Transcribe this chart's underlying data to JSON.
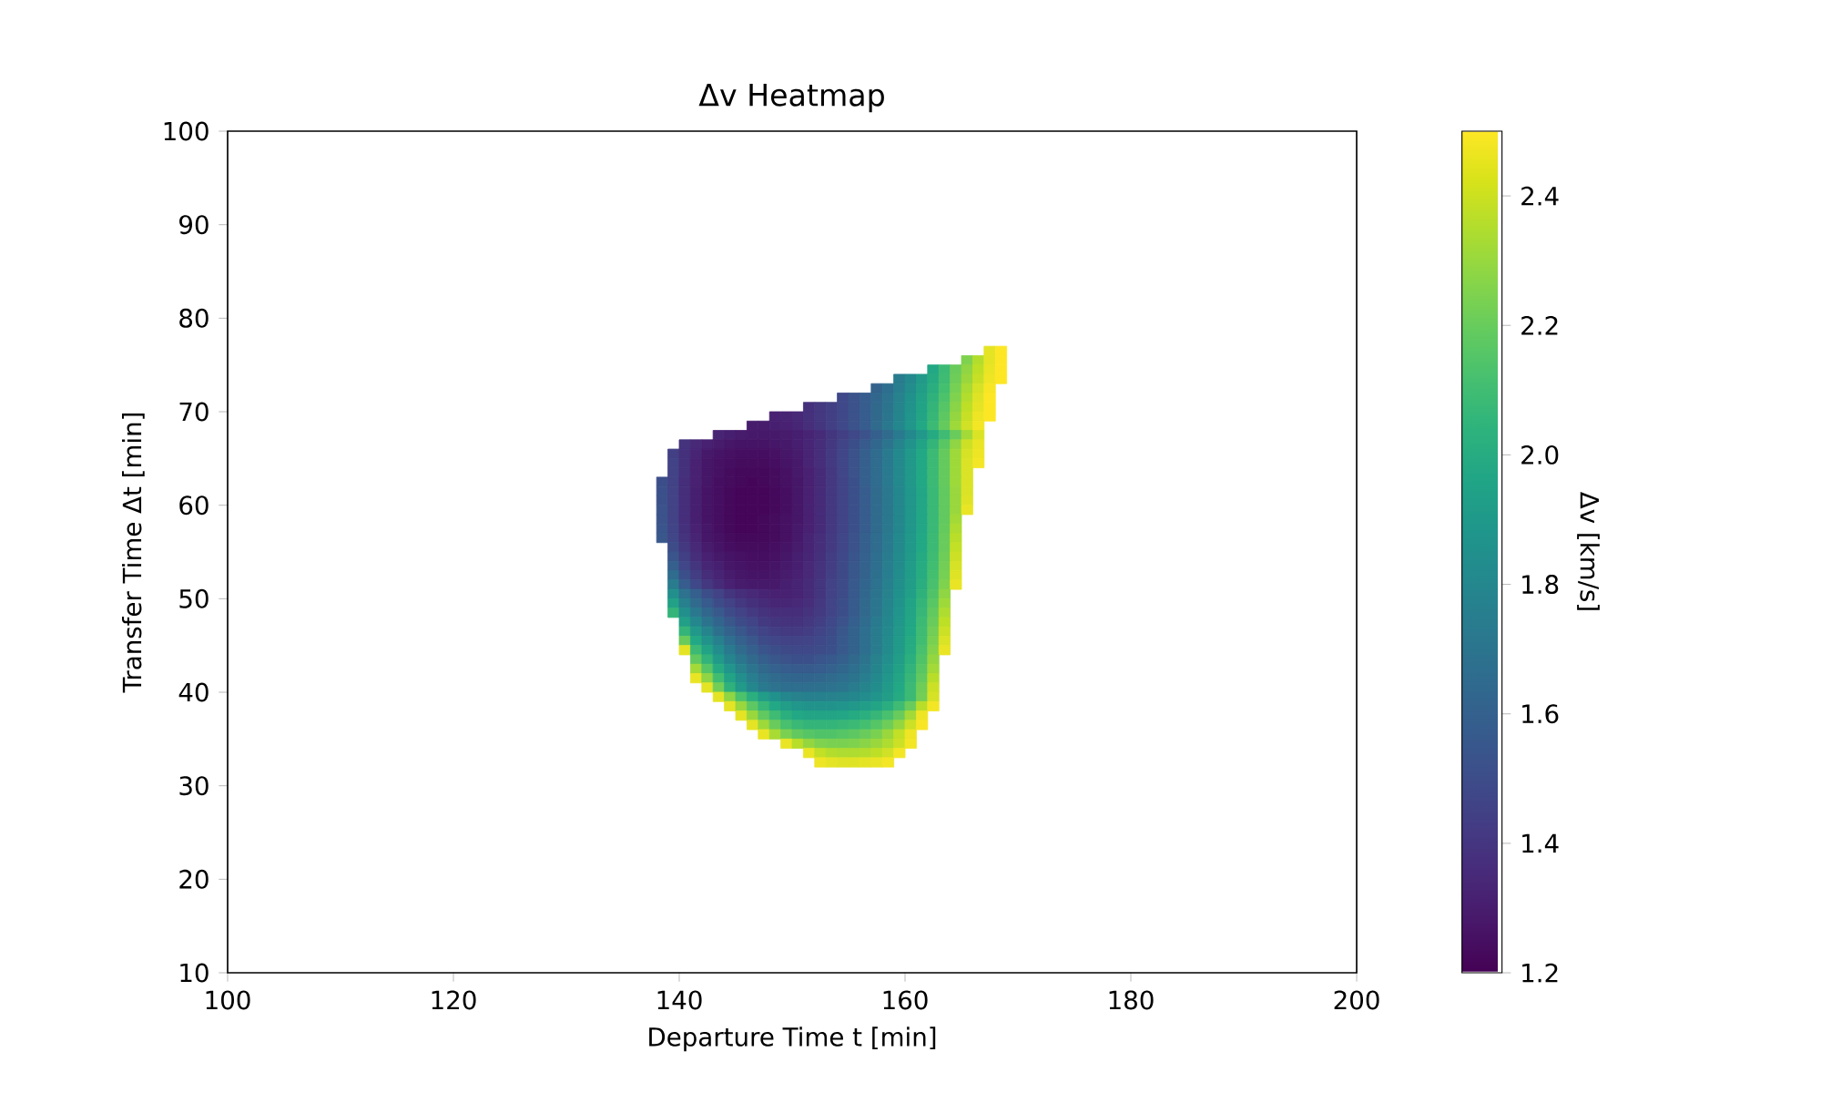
{
  "chart_data": {
    "type": "heatmap",
    "title": "Δv Heatmap",
    "xlabel": "Departure Time t [min]",
    "ylabel": "Transfer Time Δt [min]",
    "clabel": "Δv [km/s]",
    "xlim": [
      100,
      200
    ],
    "ylim": [
      10,
      100
    ],
    "xticks": [
      100,
      120,
      140,
      160,
      180,
      200
    ],
    "yticks": [
      10,
      20,
      30,
      40,
      50,
      60,
      70,
      80,
      90,
      100
    ],
    "clim": [
      1.2,
      2.5
    ],
    "cticks": [
      1.2,
      1.4,
      1.6,
      1.8,
      {
        "value": 2.0,
        "label": "2.0"
      },
      2.2,
      2.4
    ],
    "x": [
      138.5,
      139.5,
      140.5,
      141.5,
      142.5,
      143.5,
      144.5,
      145.5,
      146.5,
      147.5,
      148.5,
      149.5,
      150.5,
      151.5,
      152.5,
      153.5,
      154.5,
      155.5,
      156.5,
      157.5,
      158.5,
      159.5,
      160.5,
      161.5,
      162.5,
      163.5,
      164.5,
      165.5,
      166.5,
      167.5,
      168.5
    ],
    "y": [
      76.5,
      75.5,
      74.5,
      73.5,
      72.5,
      71.5,
      70.5,
      69.5,
      68.5,
      67.5,
      66.5,
      65.5,
      64.5,
      63.5,
      62.5,
      61.5,
      60.5,
      59.5,
      58.5,
      57.5,
      56.5,
      55.5,
      54.5,
      53.5,
      52.5,
      51.5,
      50.5,
      49.5,
      48.5,
      47.5,
      46.5,
      45.5,
      44.5,
      43.5,
      42.5,
      41.5,
      40.5,
      39.5,
      38.5,
      37.5,
      36.5,
      35.5,
      34.5,
      33.5,
      32.5
    ],
    "cells": [
      [
        null,
        null,
        null,
        null,
        null,
        null,
        null,
        null,
        null,
        null,
        null,
        null,
        null,
        null,
        null,
        null,
        null,
        null,
        null,
        null,
        null,
        null,
        null,
        null,
        null,
        null,
        null,
        null,
        null,
        2.45,
        2.5
      ],
      [
        null,
        null,
        null,
        null,
        null,
        null,
        null,
        null,
        null,
        null,
        null,
        null,
        null,
        null,
        null,
        null,
        null,
        null,
        null,
        null,
        null,
        null,
        null,
        null,
        null,
        null,
        null,
        2.25,
        2.35,
        2.45,
        2.5
      ],
      [
        null,
        null,
        null,
        null,
        null,
        null,
        null,
        null,
        null,
        null,
        null,
        null,
        null,
        null,
        null,
        null,
        null,
        null,
        null,
        null,
        null,
        null,
        null,
        null,
        1.98,
        2.08,
        2.2,
        2.28,
        2.37,
        2.46,
        2.5
      ],
      [
        null,
        null,
        null,
        null,
        null,
        null,
        null,
        null,
        null,
        null,
        null,
        null,
        null,
        null,
        null,
        null,
        null,
        null,
        null,
        null,
        null,
        1.74,
        1.81,
        1.9,
        1.99,
        2.09,
        2.21,
        2.3,
        2.39,
        2.47,
        2.5
      ],
      [
        null,
        null,
        null,
        null,
        null,
        null,
        null,
        null,
        null,
        null,
        null,
        null,
        null,
        null,
        null,
        null,
        null,
        null,
        null,
        1.61,
        1.67,
        1.75,
        1.83,
        1.92,
        2.01,
        2.11,
        2.23,
        2.33,
        2.42,
        2.49,
        null
      ],
      [
        null,
        null,
        null,
        null,
        null,
        null,
        null,
        null,
        null,
        null,
        null,
        null,
        null,
        null,
        null,
        null,
        1.48,
        1.53,
        1.58,
        1.63,
        1.69,
        1.77,
        1.85,
        1.94,
        2.03,
        2.13,
        2.25,
        2.35,
        2.44,
        2.5,
        null
      ],
      [
        null,
        null,
        null,
        null,
        null,
        null,
        null,
        null,
        null,
        null,
        null,
        null,
        null,
        1.38,
        1.41,
        1.44,
        1.48,
        1.53,
        1.58,
        1.64,
        1.7,
        1.78,
        1.86,
        1.95,
        2.05,
        2.15,
        2.27,
        2.37,
        2.45,
        2.5,
        null
      ],
      [
        null,
        null,
        null,
        null,
        null,
        null,
        null,
        null,
        null,
        null,
        1.32,
        1.33,
        1.35,
        1.38,
        1.41,
        1.44,
        1.48,
        1.53,
        1.58,
        1.64,
        1.71,
        1.79,
        1.87,
        1.96,
        2.06,
        2.17,
        2.29,
        2.39,
        2.47,
        2.5,
        null
      ],
      [
        null,
        null,
        null,
        null,
        null,
        null,
        null,
        null,
        1.3,
        1.3,
        1.31,
        1.32,
        1.34,
        1.37,
        1.4,
        1.44,
        1.48,
        1.53,
        1.58,
        1.65,
        1.72,
        1.8,
        1.88,
        1.98,
        2.08,
        2.19,
        2.31,
        2.41,
        2.48,
        null,
        null
      ],
      [
        null,
        null,
        null,
        null,
        null,
        1.33,
        1.31,
        1.3,
        1.29,
        1.29,
        1.29,
        1.3,
        1.31,
        1.33,
        1.36,
        1.4,
        1.44,
        1.48,
        1.53,
        1.59,
        1.65,
        1.73,
        1.81,
        1.89,
        1.99,
        2.09,
        2.2,
        2.32,
        2.43,
        null,
        null
      ],
      [
        null,
        null,
        1.39,
        1.35,
        1.32,
        1.3,
        1.28,
        1.27,
        1.27,
        1.27,
        1.28,
        1.29,
        1.31,
        1.34,
        1.37,
        1.41,
        1.46,
        1.51,
        1.57,
        1.63,
        1.7,
        1.78,
        1.86,
        1.95,
        2.05,
        2.16,
        2.28,
        2.4,
        2.46,
        null,
        null
      ],
      [
        null,
        1.44,
        1.38,
        1.33,
        1.29,
        1.27,
        1.26,
        1.25,
        1.25,
        1.25,
        1.26,
        1.28,
        1.3,
        1.33,
        1.37,
        1.42,
        1.47,
        1.53,
        1.59,
        1.66,
        1.73,
        1.81,
        1.89,
        1.98,
        2.08,
        2.19,
        2.31,
        2.42,
        2.47,
        null,
        null
      ],
      [
        null,
        1.45,
        1.38,
        1.32,
        1.28,
        1.26,
        1.25,
        1.24,
        1.24,
        1.24,
        1.25,
        1.27,
        1.29,
        1.33,
        1.37,
        1.42,
        1.47,
        1.53,
        1.59,
        1.66,
        1.73,
        1.81,
        1.89,
        1.98,
        2.08,
        2.19,
        2.31,
        2.43,
        2.48,
        null,
        null
      ],
      [
        null,
        1.45,
        1.38,
        1.32,
        1.28,
        1.26,
        1.24,
        1.23,
        1.23,
        1.23,
        1.24,
        1.26,
        1.29,
        1.32,
        1.36,
        1.41,
        1.47,
        1.53,
        1.59,
        1.66,
        1.73,
        1.81,
        1.89,
        1.98,
        2.08,
        2.19,
        2.31,
        2.43,
        null,
        null,
        null
      ],
      [
        1.51,
        1.45,
        1.37,
        1.32,
        1.28,
        1.25,
        1.24,
        1.23,
        1.22,
        1.23,
        1.24,
        1.26,
        1.28,
        1.32,
        1.36,
        1.41,
        1.46,
        1.52,
        1.59,
        1.66,
        1.73,
        1.81,
        1.89,
        1.98,
        2.08,
        2.19,
        2.31,
        2.43,
        null,
        null,
        null
      ],
      [
        1.52,
        1.45,
        1.37,
        1.31,
        1.27,
        1.25,
        1.23,
        1.22,
        1.22,
        1.22,
        1.23,
        1.25,
        1.28,
        1.32,
        1.36,
        1.41,
        1.46,
        1.52,
        1.58,
        1.65,
        1.72,
        1.8,
        1.88,
        1.97,
        2.07,
        2.18,
        2.3,
        2.43,
        null,
        null,
        null
      ],
      [
        1.52,
        1.45,
        1.37,
        1.31,
        1.27,
        1.25,
        1.23,
        1.22,
        1.22,
        1.22,
        1.23,
        1.25,
        1.28,
        1.32,
        1.36,
        1.41,
        1.46,
        1.52,
        1.58,
        1.65,
        1.72,
        1.8,
        1.88,
        1.97,
        2.07,
        2.18,
        2.3,
        2.44,
        null,
        null,
        null
      ],
      [
        1.53,
        1.45,
        1.37,
        1.31,
        1.27,
        1.25,
        1.23,
        1.22,
        1.22,
        1.22,
        1.23,
        1.25,
        1.28,
        1.32,
        1.36,
        1.41,
        1.46,
        1.52,
        1.58,
        1.65,
        1.72,
        1.8,
        1.88,
        1.97,
        2.07,
        2.18,
        2.3,
        2.46,
        null,
        null,
        null
      ],
      [
        1.53,
        1.45,
        1.37,
        1.31,
        1.27,
        1.25,
        1.23,
        1.22,
        1.22,
        1.23,
        1.24,
        1.26,
        1.28,
        1.32,
        1.36,
        1.41,
        1.46,
        1.52,
        1.58,
        1.65,
        1.72,
        1.8,
        1.88,
        1.97,
        2.07,
        2.18,
        2.32,
        null,
        null,
        null,
        null
      ],
      [
        1.54,
        1.46,
        1.38,
        1.32,
        1.28,
        1.25,
        1.23,
        1.22,
        1.22,
        1.23,
        1.24,
        1.26,
        1.29,
        1.32,
        1.36,
        1.41,
        1.46,
        1.52,
        1.58,
        1.65,
        1.72,
        1.8,
        1.88,
        1.97,
        2.07,
        2.19,
        2.34,
        null,
        null,
        null,
        null
      ],
      [
        1.55,
        1.47,
        1.39,
        1.33,
        1.28,
        1.26,
        1.24,
        1.23,
        1.23,
        1.23,
        1.24,
        1.26,
        1.29,
        1.33,
        1.37,
        1.42,
        1.47,
        1.53,
        1.59,
        1.66,
        1.73,
        1.81,
        1.89,
        1.98,
        2.08,
        2.2,
        2.36,
        null,
        null,
        null,
        null
      ],
      [
        null,
        1.5,
        1.41,
        1.35,
        1.3,
        1.27,
        1.25,
        1.24,
        1.24,
        1.24,
        1.25,
        1.27,
        1.3,
        1.33,
        1.37,
        1.42,
        1.47,
        1.53,
        1.59,
        1.66,
        1.73,
        1.81,
        1.89,
        1.98,
        2.08,
        2.2,
        2.38,
        null,
        null,
        null,
        null
      ],
      [
        null,
        1.54,
        1.44,
        1.37,
        1.32,
        1.29,
        1.27,
        1.26,
        1.25,
        1.25,
        1.26,
        1.28,
        1.31,
        1.34,
        1.38,
        1.43,
        1.48,
        1.54,
        1.6,
        1.67,
        1.74,
        1.82,
        1.9,
        1.99,
        2.09,
        2.21,
        2.4,
        null,
        null,
        null,
        null
      ],
      [
        null,
        1.59,
        1.47,
        1.4,
        1.34,
        1.31,
        1.28,
        1.27,
        1.26,
        1.26,
        1.27,
        1.29,
        1.31,
        1.35,
        1.39,
        1.43,
        1.49,
        1.55,
        1.61,
        1.67,
        1.75,
        1.82,
        1.91,
        2.0,
        2.1,
        2.22,
        2.42,
        null,
        null,
        null,
        null
      ],
      [
        null,
        1.66,
        1.52,
        1.43,
        1.37,
        1.33,
        1.3,
        1.28,
        1.27,
        1.27,
        1.28,
        1.3,
        1.32,
        1.35,
        1.39,
        1.44,
        1.49,
        1.55,
        1.61,
        1.68,
        1.75,
        1.83,
        1.91,
        2.0,
        2.11,
        2.23,
        2.44,
        null,
        null,
        null,
        null
      ],
      [
        null,
        1.74,
        1.58,
        1.48,
        1.41,
        1.36,
        1.32,
        1.3,
        1.29,
        1.29,
        1.29,
        1.31,
        1.33,
        1.36,
        1.4,
        1.45,
        1.5,
        1.56,
        1.62,
        1.69,
        1.76,
        1.84,
        1.92,
        2.01,
        2.12,
        2.25,
        2.46,
        null,
        null,
        null,
        null
      ],
      [
        null,
        1.84,
        1.69,
        1.59,
        1.51,
        1.45,
        1.4,
        1.37,
        1.35,
        1.33,
        1.32,
        1.32,
        1.33,
        1.36,
        1.4,
        1.45,
        1.5,
        1.56,
        1.63,
        1.7,
        1.77,
        1.85,
        1.93,
        2.03,
        2.14,
        2.28,
        null,
        null,
        null,
        null,
        null
      ],
      [
        null,
        1.94,
        1.76,
        1.65,
        1.57,
        1.5,
        1.45,
        1.41,
        1.38,
        1.36,
        1.34,
        1.34,
        1.35,
        1.37,
        1.41,
        1.46,
        1.51,
        1.57,
        1.64,
        1.71,
        1.78,
        1.86,
        1.95,
        2.05,
        2.16,
        2.31,
        null,
        null,
        null,
        null,
        null
      ],
      [
        null,
        2.05,
        1.84,
        1.72,
        1.63,
        1.56,
        1.5,
        1.45,
        1.42,
        1.39,
        1.37,
        1.37,
        1.37,
        1.39,
        1.42,
        1.46,
        1.51,
        1.57,
        1.64,
        1.71,
        1.79,
        1.87,
        1.96,
        2.06,
        2.18,
        2.34,
        null,
        null,
        null,
        null,
        null
      ],
      [
        null,
        null,
        1.93,
        1.8,
        1.7,
        1.62,
        1.55,
        1.5,
        1.46,
        1.42,
        1.4,
        1.39,
        1.39,
        1.41,
        1.44,
        1.48,
        1.53,
        1.59,
        1.66,
        1.73,
        1.8,
        1.88,
        1.97,
        2.08,
        2.2,
        2.37,
        null,
        null,
        null,
        null,
        null
      ],
      [
        null,
        null,
        2.05,
        1.89,
        1.78,
        1.68,
        1.61,
        1.55,
        1.5,
        1.46,
        1.43,
        1.42,
        1.42,
        1.43,
        1.46,
        1.5,
        1.55,
        1.61,
        1.67,
        1.74,
        1.81,
        1.89,
        1.98,
        2.09,
        2.22,
        2.4,
        null,
        null,
        null,
        null,
        null
      ],
      [
        null,
        null,
        2.2,
        1.98,
        1.86,
        1.76,
        1.67,
        1.6,
        1.55,
        1.5,
        1.47,
        1.45,
        1.45,
        1.46,
        1.48,
        1.51,
        1.56,
        1.61,
        1.67,
        1.74,
        1.82,
        1.9,
        1.99,
        2.1,
        2.24,
        2.43,
        null,
        null,
        null,
        null,
        null
      ],
      [
        null,
        null,
        2.45,
        2.08,
        1.95,
        1.83,
        1.73,
        1.65,
        1.59,
        1.54,
        1.51,
        1.49,
        1.48,
        1.48,
        1.5,
        1.52,
        1.56,
        1.61,
        1.67,
        1.74,
        1.82,
        1.9,
        2.0,
        2.12,
        2.26,
        2.46,
        null,
        null,
        null,
        null,
        null
      ],
      [
        null,
        null,
        null,
        2.18,
        2.04,
        1.9,
        1.79,
        1.71,
        1.64,
        1.59,
        1.55,
        1.53,
        1.52,
        1.52,
        1.54,
        1.56,
        1.59,
        1.64,
        1.7,
        1.77,
        1.84,
        1.92,
        2.02,
        2.14,
        2.29,
        null,
        null,
        null,
        null,
        null,
        null
      ],
      [
        null,
        null,
        null,
        2.32,
        2.15,
        1.99,
        1.87,
        1.77,
        1.7,
        1.64,
        1.6,
        1.58,
        1.57,
        1.57,
        1.58,
        1.6,
        1.63,
        1.67,
        1.72,
        1.79,
        1.86,
        1.94,
        2.04,
        2.16,
        2.32,
        null,
        null,
        null,
        null,
        null,
        null
      ],
      [
        null,
        null,
        null,
        2.46,
        2.28,
        2.1,
        1.95,
        1.84,
        1.75,
        1.69,
        1.65,
        1.63,
        1.62,
        1.62,
        1.63,
        1.65,
        1.67,
        1.7,
        1.75,
        1.81,
        1.88,
        1.96,
        2.06,
        2.18,
        2.36,
        null,
        null,
        null,
        null,
        null,
        null
      ],
      [
        null,
        null,
        null,
        null,
        2.45,
        2.22,
        2.03,
        1.9,
        1.8,
        1.73,
        1.69,
        1.67,
        1.67,
        1.67,
        1.68,
        1.69,
        1.71,
        1.74,
        1.78,
        1.83,
        1.9,
        1.98,
        2.08,
        2.21,
        2.4,
        null,
        null,
        null,
        null,
        null,
        null
      ],
      [
        null,
        null,
        null,
        null,
        null,
        2.45,
        2.28,
        2.13,
        2.02,
        1.92,
        1.85,
        1.8,
        1.77,
        1.76,
        1.76,
        1.77,
        1.78,
        1.8,
        1.83,
        1.87,
        1.92,
        1.99,
        2.08,
        2.22,
        2.42,
        null,
        null,
        null,
        null,
        null,
        null
      ],
      [
        null,
        null,
        null,
        null,
        null,
        null,
        2.45,
        2.3,
        2.17,
        2.06,
        1.98,
        1.92,
        1.88,
        1.86,
        1.86,
        1.86,
        1.87,
        1.89,
        1.92,
        1.96,
        2.01,
        2.09,
        2.2,
        2.36,
        2.48,
        null,
        null,
        null,
        null,
        null,
        null
      ],
      [
        null,
        null,
        null,
        null,
        null,
        null,
        null,
        2.45,
        2.3,
        2.18,
        2.09,
        2.02,
        1.98,
        1.96,
        1.96,
        1.96,
        1.97,
        1.99,
        2.02,
        2.06,
        2.12,
        2.2,
        2.32,
        2.47,
        null,
        null,
        null,
        null,
        null,
        null,
        null
      ],
      [
        null,
        null,
        null,
        null,
        null,
        null,
        null,
        null,
        2.45,
        2.31,
        2.2,
        2.12,
        2.07,
        2.05,
        2.05,
        2.05,
        2.06,
        2.08,
        2.11,
        2.15,
        2.21,
        2.29,
        2.4,
        2.49,
        null,
        null,
        null,
        null,
        null,
        null,
        null
      ],
      [
        null,
        null,
        null,
        null,
        null,
        null,
        null,
        null,
        null,
        2.46,
        2.33,
        2.24,
        2.18,
        2.15,
        2.14,
        2.14,
        2.15,
        2.17,
        2.2,
        2.24,
        2.3,
        2.38,
        2.47,
        null,
        null,
        null,
        null,
        null,
        null,
        null,
        null
      ],
      [
        null,
        null,
        null,
        null,
        null,
        null,
        null,
        null,
        null,
        null,
        null,
        2.46,
        2.36,
        2.29,
        2.25,
        2.24,
        2.24,
        2.25,
        2.27,
        2.3,
        2.34,
        2.4,
        2.48,
        null,
        null,
        null,
        null,
        null,
        null,
        null,
        null
      ],
      [
        null,
        null,
        null,
        null,
        null,
        null,
        null,
        null,
        null,
        null,
        null,
        null,
        null,
        2.46,
        2.38,
        2.35,
        2.34,
        2.34,
        2.35,
        2.37,
        2.41,
        2.48,
        null,
        null,
        null,
        null,
        null,
        null,
        null,
        null,
        null
      ],
      [
        null,
        null,
        null,
        null,
        null,
        null,
        null,
        null,
        null,
        null,
        null,
        null,
        null,
        null,
        2.47,
        2.45,
        2.44,
        2.44,
        2.45,
        2.46,
        2.48,
        null,
        null,
        null,
        null,
        null,
        null,
        null,
        null,
        null,
        null
      ]
    ]
  }
}
